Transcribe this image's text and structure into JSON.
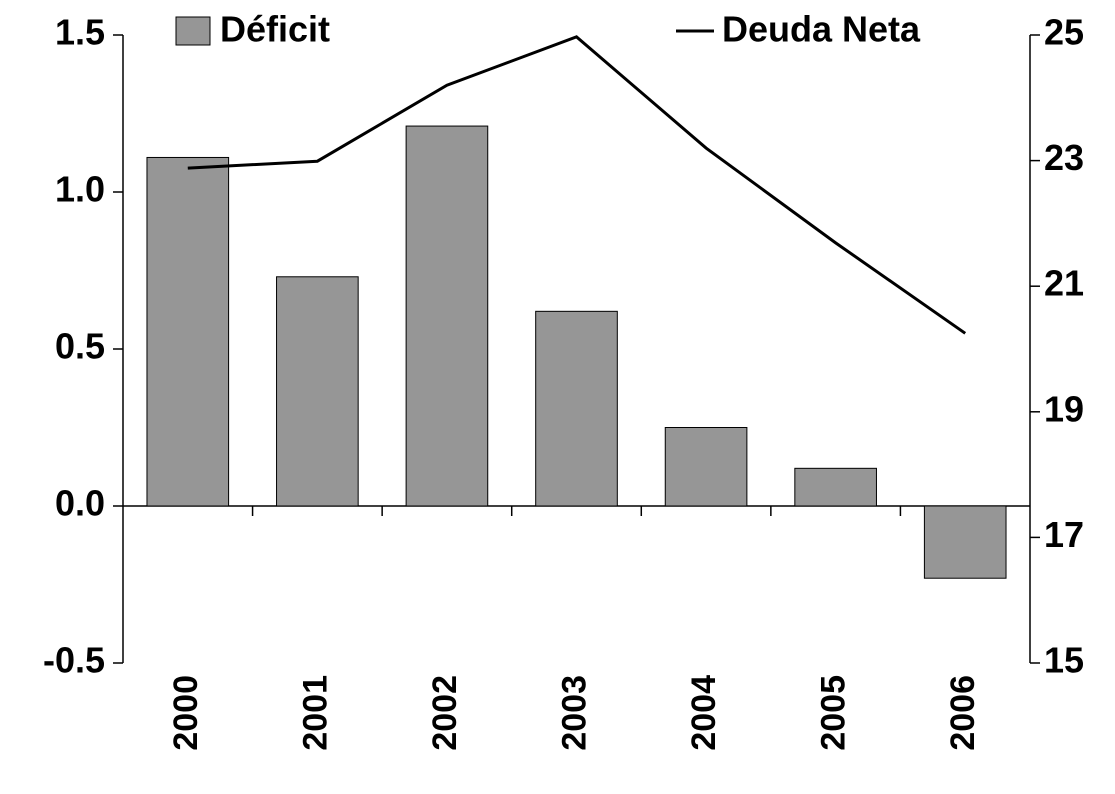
{
  "chart_data": {
    "type": "bar_line",
    "categories": [
      "2000",
      "2001",
      "2002",
      "2003",
      "2004",
      "2005",
      "2006"
    ],
    "series": [
      {
        "name": "Déficit",
        "color": "#969696",
        "type": "bar",
        "values": [
          1.11,
          0.73,
          1.21,
          0.62,
          0.25,
          0.12,
          -0.23
        ]
      },
      {
        "name": "Deuda Neta",
        "color": "#000000",
        "type": "line",
        "axis": "y2",
        "values": [
          22.88,
          22.99,
          24.2,
          24.97,
          23.2,
          21.69,
          20.25
        ]
      }
    ],
    "ylim": [
      -0.5,
      1.5
    ],
    "yticks": [
      -0.5,
      {
        "value": 0,
        "label": "0.0"
      },
      0.5,
      {
        "value": 1,
        "label": "1.0"
      },
      1.5
    ],
    "y2lim": [
      15,
      25
    ],
    "y2ticks": [
      15,
      17,
      19,
      21,
      23,
      25
    ],
    "legend": "top"
  }
}
